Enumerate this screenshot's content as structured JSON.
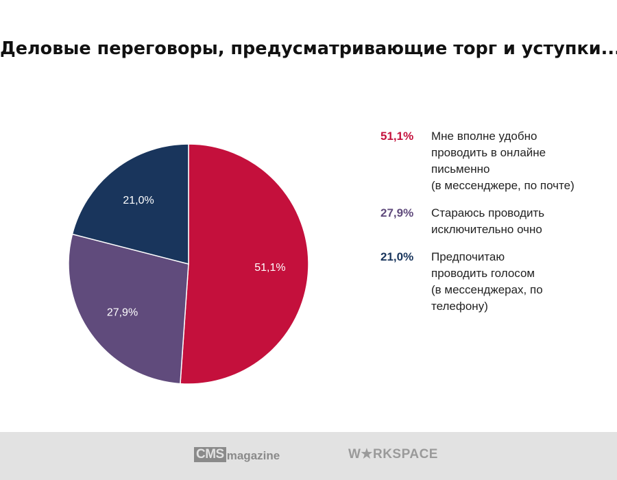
{
  "chart_data": {
    "type": "pie",
    "title": "Деловые переговоры, предусматривающие торг и уступки...",
    "slices": [
      {
        "value": 51.1,
        "label": "51,1%",
        "legend_pct": "51,1%",
        "legend_text": "Мне вполне удобно\nпроводить в онлайне\nписьменно\n(в мессенджере, по почте)",
        "color": "#c4103c"
      },
      {
        "value": 27.9,
        "label": "27,9%",
        "legend_pct": "27,9%",
        "legend_text": "Стараюсь проводить\nисключительно очно",
        "color": "#604b7c"
      },
      {
        "value": 21.0,
        "label": "21,0%",
        "legend_pct": "21,0%",
        "legend_text": "Предпочитаю\nпроводить голосом\n(в мессенджерах, по\nтелефону)",
        "color": "#19355c"
      }
    ],
    "legend_placement": "right",
    "start_angle": "top, clockwise"
  },
  "footer": {
    "logo1": {
      "box": "CMS",
      "word": "magazine"
    },
    "logo2": "W★RKSPACE"
  }
}
